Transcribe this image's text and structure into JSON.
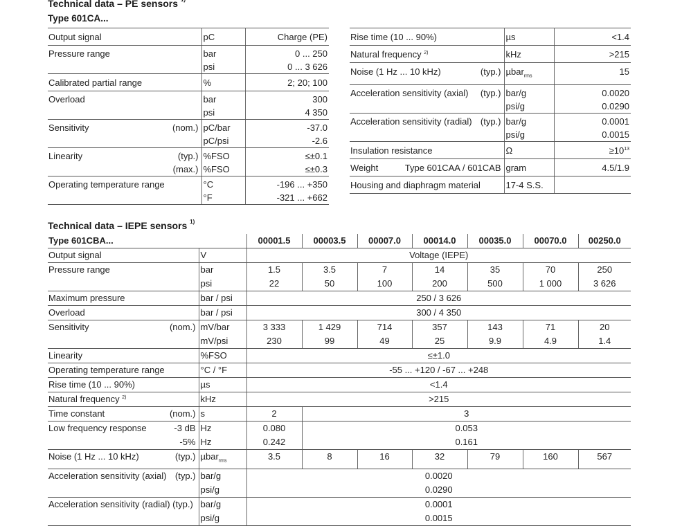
{
  "pe": {
    "title": "Technical data – PE sensors",
    "title_footnote": "1)",
    "type_label": "Type 601CA...",
    "left_rows": [
      {
        "label": "Output signal",
        "lines": [
          {
            "unit": "pC",
            "value": "Charge (PE)"
          }
        ]
      },
      {
        "label": "Pressure range",
        "lines": [
          {
            "unit": "bar",
            "value": "0 ... 250"
          },
          {
            "unit": "psi",
            "value": "0 ... 3 626"
          }
        ]
      },
      {
        "label": "Calibrated partial range",
        "lines": [
          {
            "unit": "%",
            "value": "2; 20; 100"
          }
        ]
      },
      {
        "label": "Overload",
        "lines": [
          {
            "unit": "bar",
            "value": "300"
          },
          {
            "unit": "psi",
            "value": "4 350"
          }
        ]
      },
      {
        "label": "Sensitivity",
        "lines": [
          {
            "qual": "(nom.)",
            "unit": "pC/bar",
            "value": "-37.0"
          },
          {
            "unit": "pC/psi",
            "value": "-2.6"
          }
        ]
      },
      {
        "label": "Linearity",
        "lines": [
          {
            "qual": "(typ.)",
            "unit": "%FSO",
            "value": "≤±0.1"
          },
          {
            "qual": "(max.)",
            "unit": "%FSO",
            "value": "≤±0.3"
          }
        ]
      },
      {
        "label": "Operating temperature range",
        "lines": [
          {
            "unit": "°C",
            "value": "-196 ... +350"
          },
          {
            "unit": "°F",
            "value": "-321 ... +662"
          }
        ]
      }
    ],
    "right_rows": [
      {
        "label": "Rise time (10 ... 90%)",
        "lines": [
          {
            "unit": "µs",
            "value": "<1.4"
          }
        ]
      },
      {
        "label": "Natural frequency",
        "label_sup": "2)",
        "lines": [
          {
            "unit": "kHz",
            "value": ">215"
          }
        ]
      },
      {
        "label": "Noise (1 Hz ... 10 kHz)",
        "lines": [
          {
            "qual": "(typ.)",
            "unit": "µbar",
            "unit_sub": "rms",
            "value": "15"
          }
        ]
      },
      {
        "label": "Acceleration sensitivity (axial)",
        "lines": [
          {
            "qual": "(typ.)",
            "unit": "bar/g",
            "value": "0.0020"
          },
          {
            "unit": "psi/g",
            "value": "0.0290"
          }
        ]
      },
      {
        "label": "Acceleration sensitivity (radial)",
        "lines": [
          {
            "qual": "(typ.)",
            "unit": "bar/g",
            "value": "0.0001"
          },
          {
            "unit": "psi/g",
            "value": "0.0015"
          }
        ]
      },
      {
        "label": "Insulation resistance",
        "lines": [
          {
            "unit": "Ω",
            "value": "≥10",
            "value_sup": "13"
          }
        ]
      },
      {
        "label": "Weight",
        "lines": [
          {
            "qual": "Type 601CAA / 601CAB",
            "unit": "gram",
            "value": "4.5/1.9"
          }
        ]
      },
      {
        "label": "Housing and diaphragm material",
        "lines": [
          {
            "unit": "17-4 S.S.",
            "value": ""
          }
        ]
      }
    ]
  },
  "iepe": {
    "title": "Technical data – IEPE sensors",
    "title_footnote": "1)",
    "type_label": "Type 601CBA...",
    "models": [
      "00001.5",
      "00003.5",
      "00007.0",
      "00014.0",
      "00035.0",
      "00070.0",
      "00250.0"
    ],
    "rows": [
      {
        "label": "Output signal",
        "lines": [
          {
            "unit": "V",
            "cells": [
              {
                "v": "Voltage (IEPE)",
                "span": 7
              }
            ]
          }
        ]
      },
      {
        "label": "Pressure range",
        "lines": [
          {
            "unit": "bar",
            "cells": [
              {
                "v": "1.5"
              },
              {
                "v": "3.5"
              },
              {
                "v": "7"
              },
              {
                "v": "14"
              },
              {
                "v": "35"
              },
              {
                "v": "70"
              },
              {
                "v": "250"
              }
            ]
          },
          {
            "unit": "psi",
            "cells": [
              {
                "v": "22"
              },
              {
                "v": "50"
              },
              {
                "v": "100"
              },
              {
                "v": "200"
              },
              {
                "v": "500"
              },
              {
                "v": "1 000"
              },
              {
                "v": "3 626"
              }
            ]
          }
        ]
      },
      {
        "label": "Maximum pressure",
        "lines": [
          {
            "unit": "bar / psi",
            "cells": [
              {
                "v": "250 / 3 626",
                "span": 7
              }
            ]
          }
        ]
      },
      {
        "label": "Overload",
        "lines": [
          {
            "unit": "bar / psi",
            "cells": [
              {
                "v": "300 / 4 350",
                "span": 7
              }
            ]
          }
        ]
      },
      {
        "label": "Sensitivity",
        "lines": [
          {
            "qual": "(nom.)",
            "unit": "mV/bar",
            "cells": [
              {
                "v": "3 333"
              },
              {
                "v": "1 429"
              },
              {
                "v": "714"
              },
              {
                "v": "357"
              },
              {
                "v": "143"
              },
              {
                "v": "71"
              },
              {
                "v": "20"
              }
            ]
          },
          {
            "unit": "mV/psi",
            "cells": [
              {
                "v": "230"
              },
              {
                "v": "99"
              },
              {
                "v": "49"
              },
              {
                "v": "25"
              },
              {
                "v": "9.9"
              },
              {
                "v": "4.9"
              },
              {
                "v": "1.4"
              }
            ]
          }
        ]
      },
      {
        "label": "Linearity",
        "lines": [
          {
            "unit": "%FSO",
            "cells": [
              {
                "v": "≤±1.0",
                "span": 7
              }
            ]
          }
        ]
      },
      {
        "label": "Operating temperature range",
        "lines": [
          {
            "unit": "°C / °F",
            "cells": [
              {
                "v": "-55 ... +120 / -67 ... +248",
                "span": 7
              }
            ]
          }
        ]
      },
      {
        "label": "Rise time (10 ... 90%)",
        "lines": [
          {
            "unit": "µs",
            "cells": [
              {
                "v": "<1.4",
                "span": 7
              }
            ]
          }
        ]
      },
      {
        "label": "Natural frequency",
        "label_sup": "2)",
        "lines": [
          {
            "unit": "kHz",
            "cells": [
              {
                "v": ">215",
                "span": 7
              }
            ]
          }
        ]
      },
      {
        "label": "Time constant",
        "lines": [
          {
            "qual": "(nom.)",
            "unit": "s",
            "cells": [
              {
                "v": "2"
              },
              {
                "v": "3",
                "span": 6
              }
            ]
          }
        ]
      },
      {
        "label": "Low frequency response",
        "lines": [
          {
            "qual": "-3 dB",
            "unit": "Hz",
            "cells": [
              {
                "v": "0.080"
              },
              {
                "v": "0.053",
                "span": 6
              }
            ]
          },
          {
            "qual": "-5%",
            "unit": "Hz",
            "cells": [
              {
                "v": "0.242"
              },
              {
                "v": "0.161",
                "span": 6
              }
            ]
          }
        ]
      },
      {
        "label": "Noise (1 Hz ... 10 kHz)",
        "lines": [
          {
            "qual": "(typ.)",
            "unit": "µbar",
            "unit_sub": "rms",
            "cells": [
              {
                "v": "3.5"
              },
              {
                "v": "8"
              },
              {
                "v": "16"
              },
              {
                "v": "32"
              },
              {
                "v": "79"
              },
              {
                "v": "160"
              },
              {
                "v": "567"
              }
            ]
          }
        ]
      },
      {
        "label": "Acceleration sensitivity (axial)",
        "lines": [
          {
            "qual": "(typ.)",
            "unit": "bar/g",
            "cells": [
              {
                "v": "0.0020",
                "span": 7
              }
            ]
          },
          {
            "unit": "psi/g",
            "cells": [
              {
                "v": "0.0290",
                "span": 7
              }
            ]
          }
        ]
      },
      {
        "label": "Acceleration sensitivity (radial) (typ.)",
        "lines": [
          {
            "unit": "bar/g",
            "cells": [
              {
                "v": "0.0001",
                "span": 7
              }
            ]
          },
          {
            "unit": "psi/g",
            "cells": [
              {
                "v": "0.0015",
                "span": 7
              }
            ]
          }
        ]
      }
    ]
  }
}
